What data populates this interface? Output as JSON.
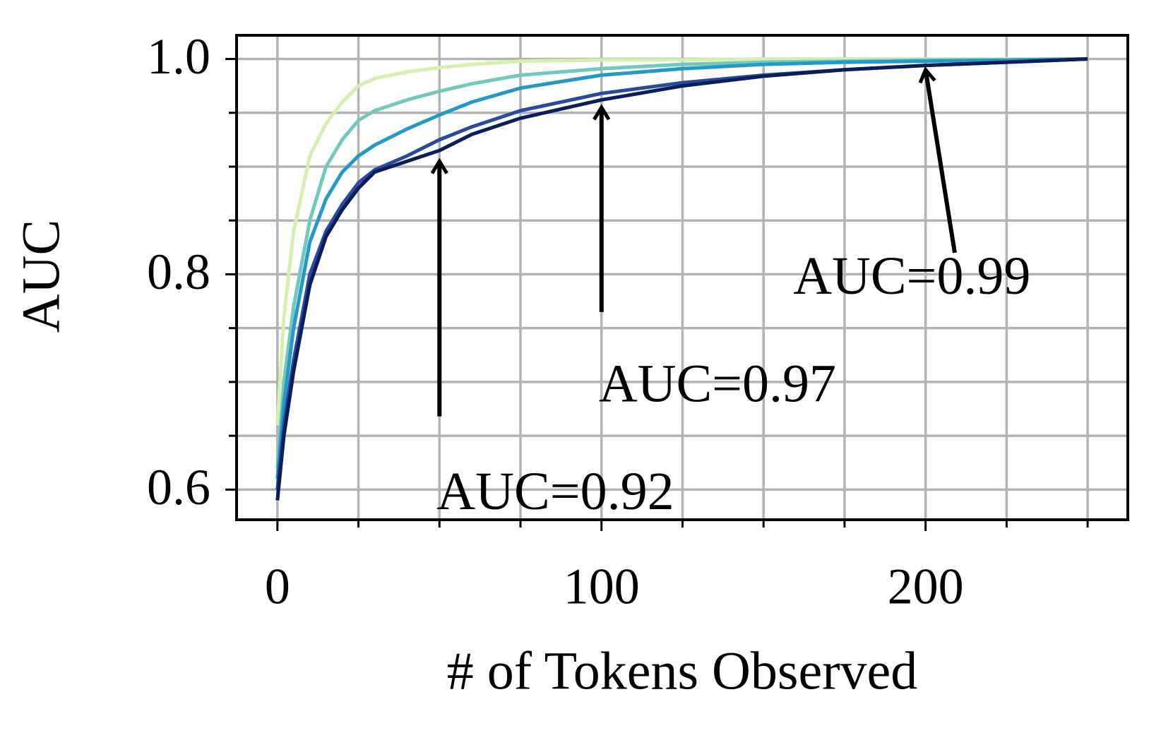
{
  "chart_data": {
    "type": "line",
    "xlabel": "# of Tokens Observed",
    "ylabel": "AUC",
    "x": [
      0,
      2,
      5,
      10,
      15,
      20,
      25,
      30,
      40,
      50,
      60,
      75,
      100,
      125,
      150,
      175,
      200,
      225,
      250
    ],
    "series": [
      {
        "color": "#d4efb0",
        "values": [
          0.66,
          0.76,
          0.84,
          0.91,
          0.94,
          0.96,
          0.975,
          0.982,
          0.988,
          0.992,
          0.995,
          0.998,
          0.999,
          0.999,
          1.0,
          1.0,
          1.0,
          1.0,
          1.0
        ]
      },
      {
        "color": "#73c8bd",
        "values": [
          0.62,
          0.7,
          0.77,
          0.85,
          0.9,
          0.925,
          0.943,
          0.952,
          0.962,
          0.97,
          0.977,
          0.985,
          0.991,
          0.995,
          0.997,
          0.998,
          0.999,
          0.999,
          1.0
        ]
      },
      {
        "color": "#2599c6",
        "values": [
          0.61,
          0.68,
          0.75,
          0.83,
          0.87,
          0.895,
          0.91,
          0.92,
          0.935,
          0.948,
          0.96,
          0.973,
          0.985,
          0.991,
          0.995,
          0.997,
          0.998,
          0.999,
          1.0
        ]
      },
      {
        "color": "#2a4a9c",
        "values": [
          0.6,
          0.66,
          0.72,
          0.8,
          0.84,
          0.865,
          0.885,
          0.897,
          0.91,
          0.925,
          0.937,
          0.952,
          0.968,
          0.978,
          0.985,
          0.99,
          0.994,
          0.997,
          1.0
        ]
      },
      {
        "color": "#0b1d5a",
        "values": [
          0.59,
          0.65,
          0.71,
          0.79,
          0.835,
          0.86,
          0.88,
          0.895,
          0.905,
          0.915,
          0.93,
          0.945,
          0.962,
          0.975,
          0.984,
          0.99,
          0.994,
          0.997,
          1.0
        ]
      }
    ],
    "xlim": [
      -12.6,
      262.4
    ],
    "ylim": [
      0.572,
      1.022
    ],
    "xticks": [
      0,
      100,
      200
    ],
    "xticks_minor": [
      25,
      50,
      75,
      125,
      150,
      175,
      225,
      250
    ],
    "yticks": [
      {
        "value": 0.6,
        "label": "0.6"
      },
      {
        "value": 0.8,
        "label": "0.8"
      },
      {
        "value": 1.0,
        "label": "1.0"
      }
    ],
    "yticks_minor": [
      0.65,
      0.7,
      0.75,
      0.85,
      0.9,
      0.95
    ],
    "grid": true,
    "annotations": [
      "AUC=0.92",
      "AUC=0.97",
      "AUC=0.99"
    ]
  }
}
